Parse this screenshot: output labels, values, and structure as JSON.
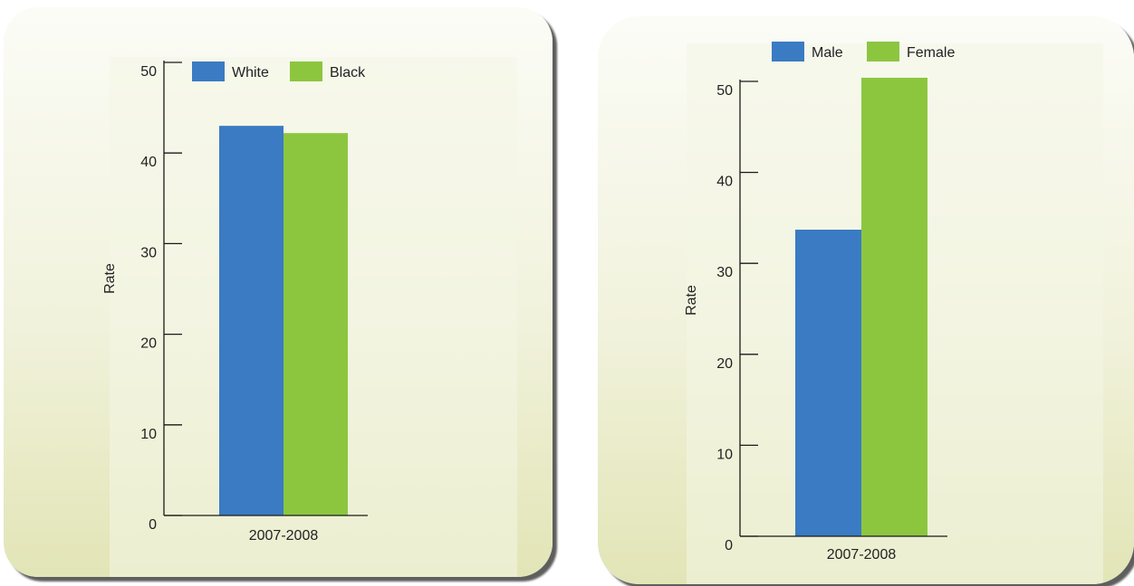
{
  "chart_data": [
    {
      "type": "bar",
      "categories": [
        "2007-2008"
      ],
      "series": [
        {
          "name": "White",
          "values": [
            43
          ],
          "color": "#3a7bc4"
        },
        {
          "name": "Black",
          "values": [
            42.2
          ],
          "color": "#8cc63f"
        }
      ],
      "ylabel": "Rate",
      "ylim": [
        0,
        50
      ],
      "yticks": [
        0,
        10,
        20,
        30,
        40,
        50
      ],
      "legend_position": "top"
    },
    {
      "type": "bar",
      "categories": [
        "2007-2008"
      ],
      "series": [
        {
          "name": "Male",
          "values": [
            33.7
          ],
          "color": "#3a7bc4"
        },
        {
          "name": "Female",
          "values": [
            50.4
          ],
          "color": "#8cc63f"
        }
      ],
      "ylabel": "Rate",
      "ylim": [
        0,
        50
      ],
      "yticks": [
        0,
        10,
        20,
        30,
        40,
        50
      ],
      "legend_position": "top"
    }
  ]
}
